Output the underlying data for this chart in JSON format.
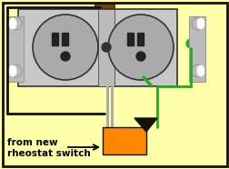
{
  "bg_color": "#FFFFAA",
  "border_color": "#111111",
  "outlet_gray": "#AAAAAA",
  "outlet_dark": "#777777",
  "outlet_border": "#333333",
  "bracket_color": "#BBBBBB",
  "bracket_dark": "#999999",
  "screw_color": "#CCCCCC",
  "slot_color": "#222222",
  "wire_black": "#111111",
  "wire_gray": "#AAAAAA",
  "wire_green": "#22AA22",
  "wire_orange": "#FF8800",
  "wire_brown": "#7B3F00",
  "green_dot_color": "#22AA22",
  "triangle_color": "#111111",
  "text_label": "from new\nrheostat switch",
  "text_fontsize": 7.5,
  "lw_wire": 2.0
}
